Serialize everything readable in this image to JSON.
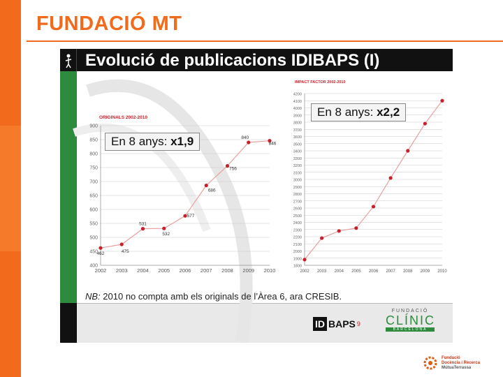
{
  "header": {
    "title": "FUNDACIÓ MT"
  },
  "colors": {
    "accent_orange": "#f26a1b",
    "accent_orange_dark": "#e05a10",
    "slide_green": "#2e8b3e",
    "series_red": "#c8202a",
    "series_line_pink": "#e8a0a0"
  },
  "slide": {
    "title": "Evolució de publicacions IDIBAPS (I)",
    "note_prefix": "NB:",
    "note_text": " 2010 no compta amb els originals de l’Àrea 6, ara CRESIB.",
    "logo_idibaps_box": "ID",
    "logo_idibaps_text": "BAPS",
    "logo_idibaps_sup": "9",
    "logo_clinic_top": "FUNDACIÓ",
    "logo_clinic_name": "CLÍNIC",
    "logo_clinic_bottom": "BARCELONA"
  },
  "footer": {
    "line1": "Fundació",
    "line2": "Docència i Recerca",
    "line3": "MútuaTerrassa"
  },
  "chart_data": [
    {
      "type": "line",
      "title": "ORIGINALS 2002-2010",
      "callout_prefix": "En 8 anys: ",
      "callout_value": "x1,9",
      "categories": [
        "2002",
        "2003",
        "2004",
        "2005",
        "2006",
        "2007",
        "2008",
        "2009",
        "2010"
      ],
      "values": [
        462,
        475,
        531,
        532,
        577,
        686,
        756,
        840,
        846
      ],
      "data_labels": [
        "462",
        "475",
        "531",
        "532",
        "577",
        "686",
        "756",
        "840",
        "846"
      ],
      "ylim": [
        400,
        900
      ],
      "yticks": [
        400,
        450,
        500,
        550,
        600,
        650,
        700,
        750,
        800,
        850,
        900
      ],
      "grid": true
    },
    {
      "type": "line",
      "title": "IMPACT FACTOR 2002-2010",
      "callout_prefix": "En 8 anys: ",
      "callout_value": "x2,2",
      "categories": [
        "2002",
        "2003",
        "2004",
        "2005",
        "2006",
        "2007",
        "2008",
        "2009",
        "2010"
      ],
      "values": [
        1880,
        2180,
        2280,
        2320,
        2620,
        3020,
        3400,
        3780,
        4100
      ],
      "ylim": [
        1800,
        4200
      ],
      "yticks": [
        1800,
        1900,
        2000,
        2100,
        2200,
        2300,
        2400,
        2500,
        2600,
        2700,
        2800,
        2900,
        3000,
        3100,
        3200,
        3300,
        3400,
        3500,
        3600,
        3700,
        3800,
        3900,
        4000,
        4100,
        4200
      ],
      "grid": true
    }
  ]
}
